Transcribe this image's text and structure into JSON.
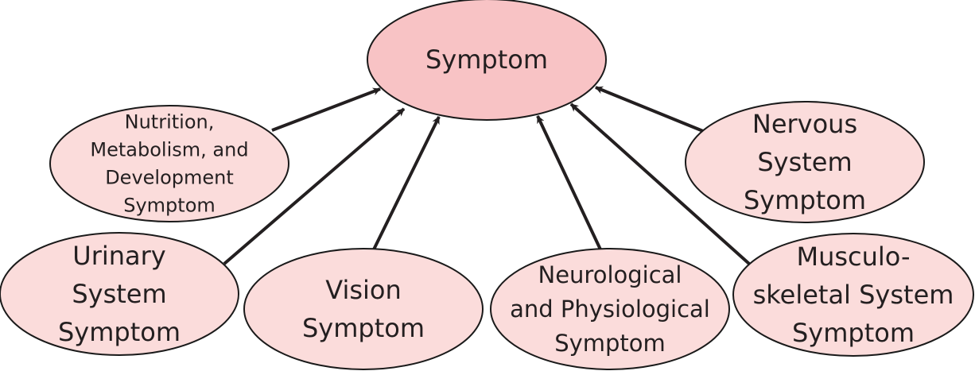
{
  "colors": {
    "root_fill": "#f8c3c5",
    "child_fill": "#fbdcdb",
    "stroke": "#1a1a1a",
    "text": "#231f20",
    "arrow": "#231f20"
  },
  "root": {
    "label": [
      "Symptom"
    ]
  },
  "children": [
    {
      "id": "nutrition",
      "label": [
        "Nutrition,",
        "Metabolism, and",
        "Development",
        "Symptom"
      ]
    },
    {
      "id": "urinary",
      "label": [
        "Urinary",
        "System",
        "Symptom"
      ]
    },
    {
      "id": "vision",
      "label": [
        "Vision",
        "Symptom"
      ]
    },
    {
      "id": "neurological",
      "label": [
        "Neurological",
        "and Physiological",
        "Symptom"
      ]
    },
    {
      "id": "musculoskeletal",
      "label": [
        "Musculo-",
        "skeletal System",
        "Symptom"
      ]
    },
    {
      "id": "nervous",
      "label": [
        "Nervous",
        "System",
        "Symptom"
      ]
    }
  ],
  "edges": [
    {
      "from": "nutrition",
      "to": "root"
    },
    {
      "from": "urinary",
      "to": "root"
    },
    {
      "from": "vision",
      "to": "root"
    },
    {
      "from": "neurological",
      "to": "root"
    },
    {
      "from": "musculoskeletal",
      "to": "root"
    },
    {
      "from": "nervous",
      "to": "root"
    }
  ]
}
